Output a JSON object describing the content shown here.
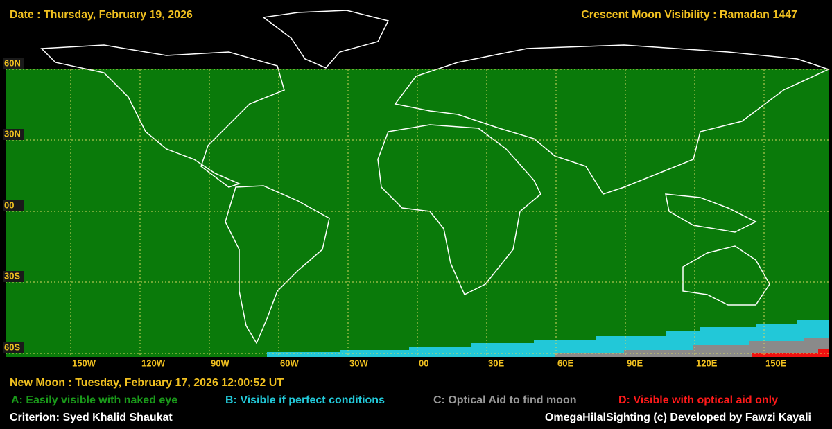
{
  "header": {
    "date": "Date : Thursday, February 19, 2026",
    "title": "Crescent Moon Visibility : Ramadan  1447"
  },
  "map": {
    "lat_labels": [
      "60N",
      "30N",
      "00",
      "30S",
      "60S"
    ],
    "lon_labels": [
      "150W",
      "120W",
      "90W",
      "60W",
      "30W",
      "00",
      "30E",
      "60E",
      "90E",
      "120E",
      "150E"
    ]
  },
  "footer": {
    "new_moon": "New Moon : Tuesday, February 17, 2026  12:00:52  UT",
    "legend": [
      {
        "text": "A: Easily visible with naked eye",
        "color": "#1a9a1a"
      },
      {
        "text": "B: Visible if perfect conditions",
        "color": "#22c8d8"
      },
      {
        "text": "C: Optical Aid to find moon",
        "color": "#9a9a9a"
      },
      {
        "text": "D: Visible with optical aid only",
        "color": "#ff1a1a"
      }
    ],
    "criterion": "Criterion: Syed Khalid Shaukat",
    "credit": "OmegaHilalSighting  (c)  Developed by Fawzi Kayali"
  }
}
